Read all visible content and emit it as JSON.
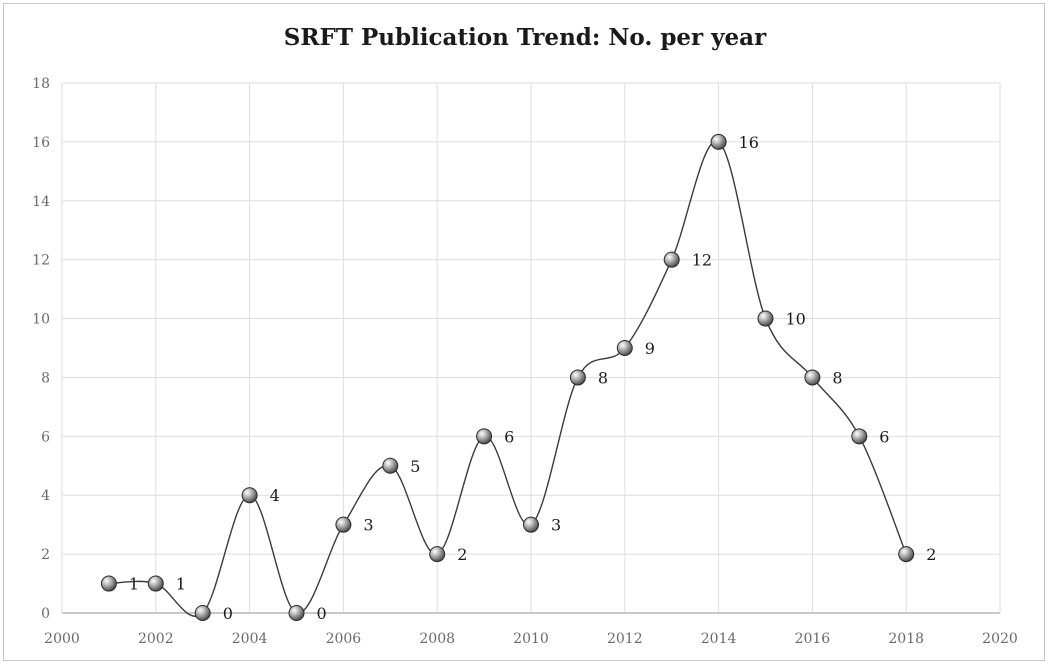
{
  "chart_data": {
    "type": "line",
    "title": "SRFT Publication Trend: No. per year",
    "xlabel": "",
    "ylabel": "",
    "xlim": [
      2000,
      2020
    ],
    "ylim": [
      0,
      18
    ],
    "x_ticks": [
      2000,
      2002,
      2004,
      2006,
      2008,
      2010,
      2012,
      2014,
      2016,
      2018,
      2020
    ],
    "y_ticks": [
      0,
      2,
      4,
      6,
      8,
      10,
      12,
      14,
      16,
      18
    ],
    "grid": true,
    "smooth": true,
    "data_labels": true,
    "legend": "none",
    "series": [
      {
        "x": [
          2001,
          2002,
          2003,
          2004,
          2005,
          2006,
          2007,
          2008,
          2009,
          2010,
          2011,
          2012,
          2013,
          2014,
          2015,
          2016,
          2017,
          2018
        ],
        "values": [
          1,
          1,
          0,
          4,
          0,
          3,
          5,
          2,
          6,
          3,
          8,
          9,
          12,
          16,
          10,
          8,
          6,
          2
        ]
      }
    ],
    "colors": {
      "line": "#3a3a3a",
      "marker": "#8c8c8c",
      "grid": "#dedede"
    }
  }
}
